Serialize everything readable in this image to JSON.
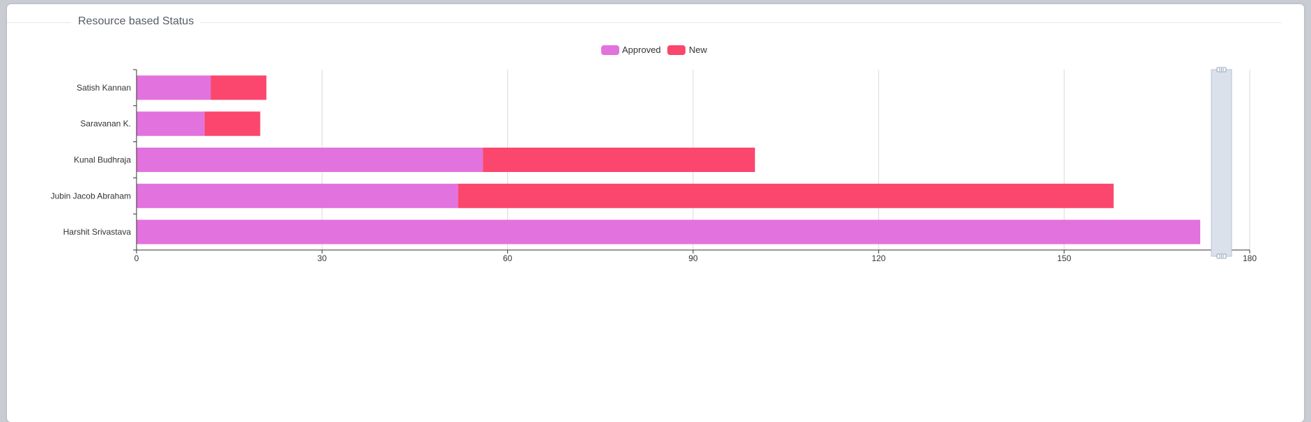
{
  "panel": {
    "title": "Resource based Status"
  },
  "colors": {
    "approved": "#e272dd",
    "new": "#fb466d",
    "grid": "#d9d9d9",
    "axis": "#333333",
    "zoom_fill": "#dbe1ea",
    "zoom_border": "#b7c2d4"
  },
  "chart_data": {
    "type": "bar",
    "orientation": "horizontal",
    "stacked": true,
    "title": "Resource based Status",
    "categories": [
      "Harshit Srivastava",
      "Jubin Jacob Abraham",
      "Kunal Budhraja",
      "Saravanan K.",
      "Satish Kannan"
    ],
    "series": [
      {
        "name": "Approved",
        "color": "#e272dd",
        "values": [
          172,
          52,
          56,
          11,
          12
        ]
      },
      {
        "name": "New",
        "color": "#fb466d",
        "values": [
          0,
          106,
          44,
          9,
          9
        ]
      }
    ],
    "xlim": [
      0,
      180
    ],
    "xticks": [
      0,
      30,
      60,
      90,
      120,
      150,
      180
    ],
    "xlabel": "",
    "ylabel": "",
    "grid": "vertical",
    "legend": "top-center",
    "dataZoom": "vertical slider on right"
  }
}
